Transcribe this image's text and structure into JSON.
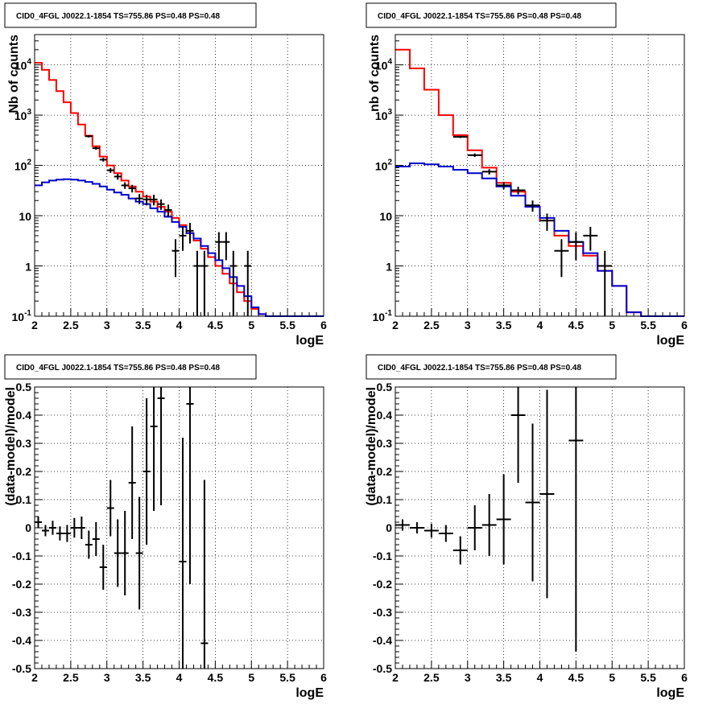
{
  "charts": [
    {
      "id": "p1",
      "type": "scatter",
      "yscale": "log",
      "title": "CID0_4FGL J0022.1-1854 TS=755.86 PS=0.48 PS=0.48",
      "xlabel": "logE",
      "ylabel": "Nb of counts",
      "xlim": [
        2,
        6
      ],
      "ylim": [
        0.1,
        40000
      ],
      "x_ticks": [
        "2",
        "2.5",
        "3",
        "3.5",
        "4",
        "4.5",
        "5",
        "5.5",
        "6"
      ],
      "y_ticks": [
        "10^-1",
        "1",
        "10",
        "10^2",
        "10^3",
        "10^4"
      ],
      "grid": true,
      "series": [
        {
          "color": "#ff0000",
          "kind": "step",
          "bin_width": 0.1,
          "x": [
            2.0,
            2.1,
            2.2,
            2.3,
            2.4,
            2.5,
            2.6,
            2.7,
            2.8,
            2.9,
            3.0,
            3.1,
            3.2,
            3.3,
            3.4,
            3.5,
            3.6,
            3.7,
            3.8,
            3.9,
            4.0,
            4.1,
            4.2,
            4.3,
            4.4,
            4.5,
            4.6,
            4.7,
            4.8,
            4.9,
            5.0,
            5.1,
            5.2,
            5.3,
            5.4,
            5.5,
            5.6,
            5.7,
            5.8,
            5.9
          ],
          "values": [
            11000,
            8000,
            5000,
            3000,
            1800,
            1100,
            650,
            390,
            240,
            150,
            100,
            70,
            50,
            38,
            30,
            24,
            19,
            15,
            12,
            9,
            6.5,
            4.5,
            3.2,
            2.2,
            1.5,
            1.0,
            0.7,
            0.45,
            0.3,
            0.2,
            0.14,
            0.11,
            0.1,
            0.1,
            0.1,
            0.1,
            0.1,
            0.1,
            0.1,
            0.1
          ]
        },
        {
          "color": "#0000cc",
          "kind": "step",
          "bin_width": 0.1,
          "x": [
            2.0,
            2.1,
            2.2,
            2.3,
            2.4,
            2.5,
            2.6,
            2.7,
            2.8,
            2.9,
            3.0,
            3.1,
            3.2,
            3.3,
            3.4,
            3.5,
            3.6,
            3.7,
            3.8,
            3.9,
            4.0,
            4.1,
            4.2,
            4.3,
            4.4,
            4.5,
            4.6,
            4.7,
            4.8,
            4.9,
            5.0,
            5.1,
            5.2,
            5.3,
            5.4,
            5.5,
            5.6,
            5.7,
            5.8,
            5.9
          ],
          "values": [
            40,
            46,
            50,
            52,
            53,
            52,
            50,
            47,
            43,
            38,
            33,
            29,
            26,
            22,
            19,
            17,
            14,
            12,
            9.5,
            7.5,
            6,
            4.5,
            3.5,
            2.5,
            1.8,
            1.3,
            0.9,
            0.6,
            0.4,
            0.25,
            0.15,
            0.11,
            0.1,
            0.1,
            0.1,
            0.1,
            0.1,
            0.1,
            0.1,
            0.1
          ]
        },
        {
          "color": "#000000",
          "kind": "errorbars",
          "bin_width": 0.1,
          "x": [
            2.75,
            2.85,
            2.95,
            3.05,
            3.15,
            3.25,
            3.35,
            3.45,
            3.55,
            3.65,
            3.75,
            3.85,
            3.95,
            4.05,
            4.15,
            4.25,
            4.35,
            4.55,
            4.65,
            4.75,
            4.95
          ],
          "values": [
            380,
            220,
            130,
            80,
            60,
            40,
            35,
            22,
            21,
            21,
            17,
            13,
            2,
            4,
            5,
            1,
            1,
            3,
            3,
            1,
            1
          ],
          "errors": [
            20,
            15,
            11,
            9,
            8,
            6,
            6,
            5,
            5,
            5,
            4,
            3.6,
            1.4,
            2,
            2.2,
            1,
            1,
            1.7,
            1.7,
            1,
            1
          ]
        }
      ]
    },
    {
      "id": "p2",
      "type": "scatter",
      "yscale": "log",
      "title": "CID0_4FGL J0022.1-1854 TS=755.86 PS=0.48 PS=0.48",
      "xlabel": "logE",
      "ylabel": "nb of counts",
      "xlim": [
        2,
        6
      ],
      "ylim": [
        0.1,
        40000
      ],
      "x_ticks": [
        "2",
        "2.5",
        "3",
        "3.5",
        "4",
        "4.5",
        "5",
        "5.5",
        "6"
      ],
      "y_ticks": [
        "10^-1",
        "1",
        "10",
        "10^2",
        "10^3",
        "10^4"
      ],
      "grid": true,
      "series": [
        {
          "color": "#ff0000",
          "kind": "step",
          "bin_width": 0.2,
          "x": [
            2.0,
            2.2,
            2.4,
            2.6,
            2.8,
            3.0,
            3.2,
            3.4,
            3.6,
            3.8,
            4.0,
            4.2,
            4.4,
            4.6,
            4.8,
            5.0,
            5.2,
            5.4,
            5.6,
            5.8
          ],
          "values": [
            20000,
            8500,
            3200,
            1000,
            400,
            200,
            90,
            45,
            30,
            15,
            8,
            4,
            2.5,
            1.6,
            0.8,
            0.4,
            0.12,
            0.1,
            0.1,
            0.1
          ]
        },
        {
          "color": "#0000cc",
          "kind": "step",
          "bin_width": 0.2,
          "x": [
            2.0,
            2.2,
            2.4,
            2.6,
            2.8,
            3.0,
            3.2,
            3.4,
            3.6,
            3.8,
            4.0,
            4.2,
            4.4,
            4.6,
            4.8,
            5.0,
            5.2,
            5.4,
            5.6,
            5.8
          ],
          "values": [
            95,
            110,
            105,
            95,
            82,
            70,
            55,
            38,
            25,
            15,
            9,
            5,
            3,
            1.8,
            0.8,
            0.4,
            0.12,
            0.1,
            0.1,
            0.1
          ]
        },
        {
          "color": "#000000",
          "kind": "errorbars",
          "bin_width": 0.2,
          "x": [
            2.9,
            3.1,
            3.3,
            3.5,
            3.7,
            3.9,
            4.1,
            4.3,
            4.5,
            4.7,
            4.9
          ],
          "values": [
            370,
            160,
            75,
            40,
            32,
            16,
            8,
            2,
            3,
            4,
            1
          ],
          "errors": [
            19,
            13,
            9,
            6.5,
            5.5,
            4,
            3,
            1.4,
            1.7,
            2,
            1
          ]
        }
      ]
    },
    {
      "id": "p3",
      "type": "scatter",
      "yscale": "linear",
      "title": "CID0_4FGL J0022.1-1854 TS=755.86 PS=0.48 PS=0.48",
      "xlabel": "logE",
      "ylabel": "(data-model)/model",
      "xlim": [
        2,
        6
      ],
      "ylim": [
        -0.5,
        0.5
      ],
      "x_ticks": [
        "2",
        "2.5",
        "3",
        "3.5",
        "4",
        "4.5",
        "5",
        "5.5",
        "6"
      ],
      "y_ticks": [
        "-0.5",
        "-0.4",
        "-0.3",
        "-0.2",
        "-0.1",
        "0",
        "0.1",
        "0.2",
        "0.3",
        "0.4",
        "0.5"
      ],
      "grid": true,
      "series": [
        {
          "color": "#000000",
          "kind": "errorbars",
          "bin_width": 0.1,
          "x": [
            2.05,
            2.15,
            2.25,
            2.35,
            2.45,
            2.55,
            2.65,
            2.75,
            2.85,
            2.95,
            3.05,
            3.15,
            3.25,
            3.35,
            3.45,
            3.55,
            3.65,
            3.75,
            4.05,
            4.15,
            4.35
          ],
          "values": [
            0.02,
            -0.01,
            0.0,
            -0.02,
            -0.02,
            0.0,
            0.0,
            -0.06,
            -0.04,
            -0.14,
            0.07,
            -0.09,
            -0.09,
            0.16,
            -0.09,
            0.2,
            0.36,
            0.46,
            -0.12,
            0.44,
            -0.41
          ],
          "errors": [
            0.02,
            0.02,
            0.025,
            0.025,
            0.03,
            0.035,
            0.04,
            0.05,
            0.06,
            0.08,
            0.1,
            0.12,
            0.15,
            0.2,
            0.2,
            0.26,
            0.3,
            0.38,
            0.44,
            0.64,
            0.58
          ]
        }
      ]
    },
    {
      "id": "p4",
      "type": "scatter",
      "yscale": "linear",
      "title": "CID0_4FGL J0022.1-1854 TS=755.86 PS=0.48 PS=0.48",
      "xlabel": "logE",
      "ylabel": "(data-model)/model",
      "xlim": [
        2,
        6
      ],
      "ylim": [
        -0.5,
        0.5
      ],
      "x_ticks": [
        "2",
        "2.5",
        "3",
        "3.5",
        "4",
        "4.5",
        "5",
        "5.5",
        "6"
      ],
      "y_ticks": [
        "-0.5",
        "-0.4",
        "-0.3",
        "-0.2",
        "-0.1",
        "0",
        "0.1",
        "0.2",
        "0.3",
        "0.4",
        "0.5"
      ],
      "grid": true,
      "series": [
        {
          "color": "#000000",
          "kind": "errorbars",
          "bin_width": 0.2,
          "x": [
            2.1,
            2.3,
            2.5,
            2.7,
            2.9,
            3.1,
            3.3,
            3.5,
            3.7,
            3.9,
            4.1,
            4.5
          ],
          "values": [
            0.01,
            0.0,
            -0.01,
            -0.02,
            -0.08,
            0.0,
            0.01,
            0.03,
            0.4,
            0.09,
            0.12,
            0.31
          ],
          "errors": [
            0.02,
            0.02,
            0.025,
            0.03,
            0.05,
            0.08,
            0.11,
            0.16,
            0.24,
            0.28,
            0.37,
            0.75
          ]
        }
      ]
    }
  ]
}
